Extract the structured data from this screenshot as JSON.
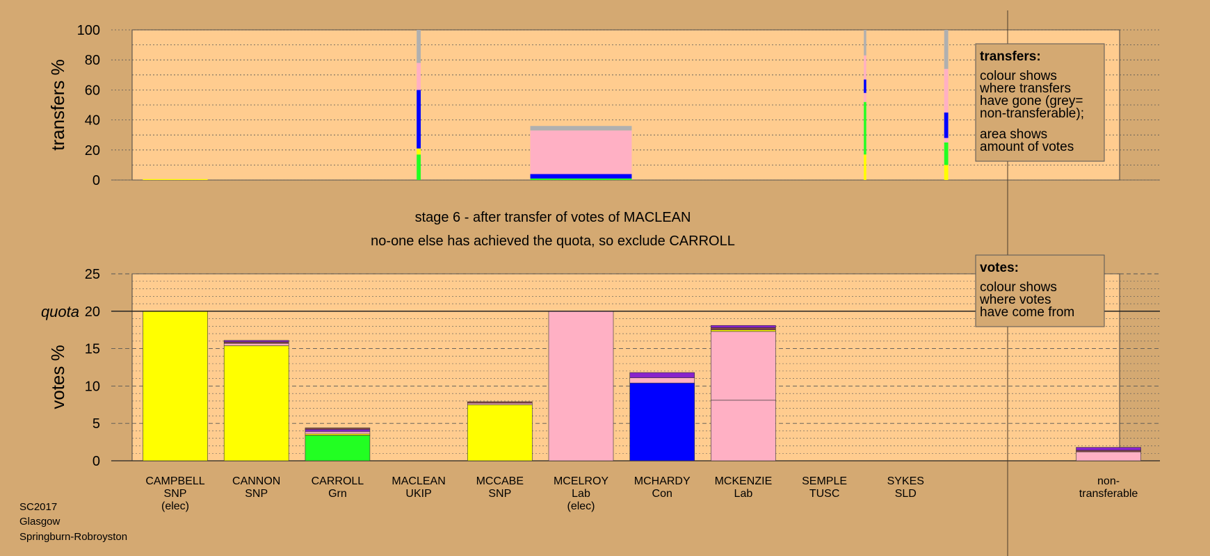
{
  "colors": {
    "background": "#D4A972",
    "plot_bg": "#FFCC8F",
    "snp": "#FFFF00",
    "lab": "#FFB0C4",
    "con": "#0000FF",
    "grn": "#22FF22",
    "other": "#8822CC",
    "nontransferable": "#B0B0B0",
    "dark": "#884444"
  },
  "stage_title": "stage 6 - after transfer of votes of MACLEAN",
  "stage_subtitle": "no-one else has achieved the quota, so exclude CARROLL",
  "footer": [
    "SC2017",
    "Glasgow",
    "Springburn-Robroyston"
  ],
  "quota_label": "quota",
  "transfers_legend": {
    "title": "transfers:",
    "lines1": [
      "colour shows",
      "where transfers",
      "have gone (grey=",
      "non-transferable);"
    ],
    "lines2": [
      "area shows",
      "amount of votes"
    ]
  },
  "votes_legend": {
    "title": "votes:",
    "lines": [
      "colour shows",
      "where votes",
      "have come from"
    ]
  },
  "chart_data": [
    {
      "type": "bar",
      "ylabel": "transfers %",
      "ylim": [
        0,
        100
      ],
      "yticks": [
        0,
        20,
        40,
        60,
        80,
        100
      ],
      "columns": [
        {
          "x": 0,
          "width": 0.8,
          "segments": [
            {
              "color": "snp",
              "from": 0,
              "to": 0.6
            }
          ]
        },
        {
          "x": 3,
          "width": 0.05,
          "segments": [
            {
              "color": "grn",
              "from": 0,
              "to": 17
            },
            {
              "color": "snp",
              "from": 17,
              "to": 21
            },
            {
              "color": "con",
              "from": 21,
              "to": 60
            },
            {
              "color": "lab",
              "from": 60,
              "to": 78
            },
            {
              "color": "nontransferable",
              "from": 78,
              "to": 100
            }
          ]
        },
        {
          "x": 5,
          "width": 1.25,
          "segments": [
            {
              "color": "grn",
              "from": 0,
              "to": 1
            },
            {
              "color": "con",
              "from": 1,
              "to": 4
            },
            {
              "color": "lab",
              "from": 4,
              "to": 33
            },
            {
              "color": "nontransferable",
              "from": 33,
              "to": 36
            }
          ]
        },
        {
          "x": 8.5,
          "width": 0.03,
          "segments": [
            {
              "color": "snp",
              "from": 0,
              "to": 17
            },
            {
              "color": "grn",
              "from": 17,
              "to": 52
            },
            {
              "color": "lab",
              "from": 52,
              "to": 58
            },
            {
              "color": "con",
              "from": 58,
              "to": 67
            },
            {
              "color": "lab",
              "from": 67,
              "to": 83
            },
            {
              "color": "nontransferable",
              "from": 83,
              "to": 100
            }
          ]
        },
        {
          "x": 9.5,
          "width": 0.05,
          "segments": [
            {
              "color": "snp",
              "from": 0,
              "to": 10
            },
            {
              "color": "grn",
              "from": 10,
              "to": 25
            },
            {
              "color": "lab",
              "from": 25,
              "to": 28
            },
            {
              "color": "con",
              "from": 28,
              "to": 45
            },
            {
              "color": "lab",
              "from": 45,
              "to": 74
            },
            {
              "color": "nontransferable",
              "from": 74,
              "to": 100
            }
          ]
        }
      ]
    },
    {
      "type": "bar",
      "ylabel": "votes %",
      "ylim": [
        0,
        25
      ],
      "yticks": [
        0,
        5,
        10,
        15,
        20,
        25
      ],
      "quota": 20,
      "categories": [
        {
          "lines": [
            "CAMPBELL",
            "SNP",
            "(elec)"
          ],
          "x": 0,
          "segments": [
            {
              "color": "snp",
              "value": 20
            }
          ]
        },
        {
          "lines": [
            "CANNON",
            "SNP"
          ],
          "x": 1,
          "segments": [
            {
              "color": "snp",
              "value": 15.4
            },
            {
              "color": "lab",
              "value": 0.3
            },
            {
              "color": "dark",
              "value": 0.2
            },
            {
              "color": "other",
              "value": 0.2
            }
          ]
        },
        {
          "lines": [
            "CARROLL",
            "Grn"
          ],
          "x": 2,
          "segments": [
            {
              "color": "grn",
              "value": 3.4
            },
            {
              "color": "snp",
              "value": 0.2
            },
            {
              "color": "lab",
              "value": 0.3
            },
            {
              "color": "other",
              "value": 0.3
            },
            {
              "color": "dark",
              "value": 0.2
            }
          ]
        },
        {
          "lines": [
            "MACLEAN",
            "UKIP"
          ],
          "x": 3,
          "segments": []
        },
        {
          "lines": [
            "MCCABE",
            "SNP"
          ],
          "x": 4,
          "segments": [
            {
              "color": "snp",
              "value": 7.5
            },
            {
              "color": "lab",
              "value": 0.2
            },
            {
              "color": "dark",
              "value": 0.2
            }
          ]
        },
        {
          "lines": [
            "MCELROY",
            "Lab",
            "(elec)"
          ],
          "x": 5,
          "segments": [
            {
              "color": "lab",
              "value": 20
            }
          ]
        },
        {
          "lines": [
            "MCHARDY",
            "Con"
          ],
          "x": 6,
          "segments": [
            {
              "color": "con",
              "value": 10.4
            },
            {
              "color": "lab",
              "value": 0.7
            },
            {
              "color": "other",
              "value": 0.7
            }
          ]
        },
        {
          "lines": [
            "MCKENZIE",
            "Lab"
          ],
          "x": 7,
          "segments": [
            {
              "color": "lab",
              "value": 8.1
            },
            {
              "color": "lab",
              "value": 9.2
            },
            {
              "color": "snp",
              "value": 0.2
            },
            {
              "color": "dark",
              "value": 0.3
            },
            {
              "color": "other",
              "value": 0.3
            }
          ]
        },
        {
          "lines": [
            "SEMPLE",
            "TUSC"
          ],
          "x": 8,
          "segments": []
        },
        {
          "lines": [
            "SYKES",
            "SLD"
          ],
          "x": 9,
          "segments": []
        },
        {
          "lines": [
            "non-",
            "transferable"
          ],
          "x": 11.5,
          "segments": [
            {
              "color": "lab",
              "value": 1.2
            },
            {
              "color": "dark",
              "value": 0.2
            },
            {
              "color": "other",
              "value": 0.4
            }
          ]
        }
      ]
    }
  ]
}
